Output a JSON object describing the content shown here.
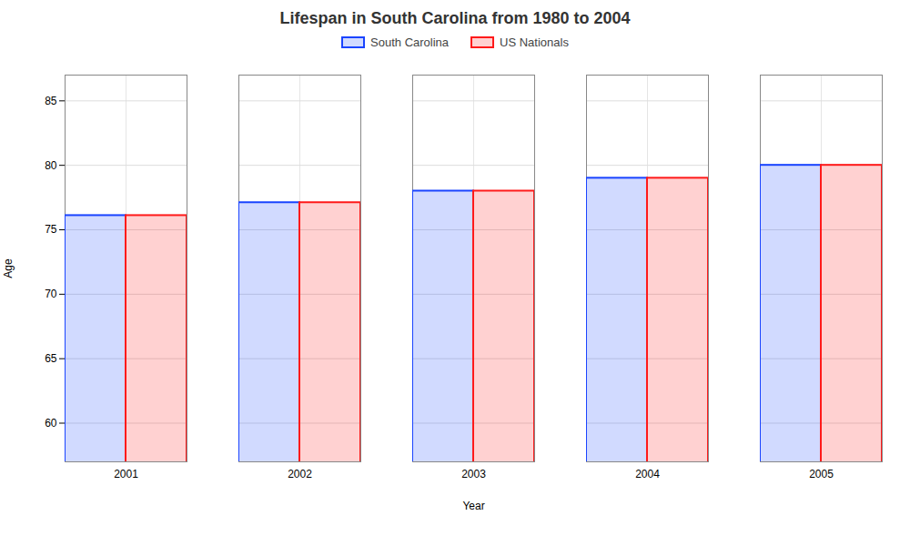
{
  "chart_data": {
    "type": "bar",
    "title": "Lifespan in South Carolina from 1980 to 2004",
    "xlabel": "Year",
    "ylabel": "Age",
    "categories": [
      "2001",
      "2002",
      "2003",
      "2004",
      "2005"
    ],
    "series": [
      {
        "name": "South Carolina",
        "color": "#1a44ff",
        "values": [
          76.1,
          77.1,
          78.0,
          79.0,
          80.0
        ]
      },
      {
        "name": "US Nationals",
        "color": "#ff1a1a",
        "values": [
          76.1,
          77.1,
          78.0,
          79.0,
          80.0
        ]
      }
    ],
    "ylim": [
      57,
      87
    ],
    "yticks": [
      60,
      65,
      70,
      75,
      80,
      85
    ],
    "grid": true,
    "legend": "top"
  }
}
